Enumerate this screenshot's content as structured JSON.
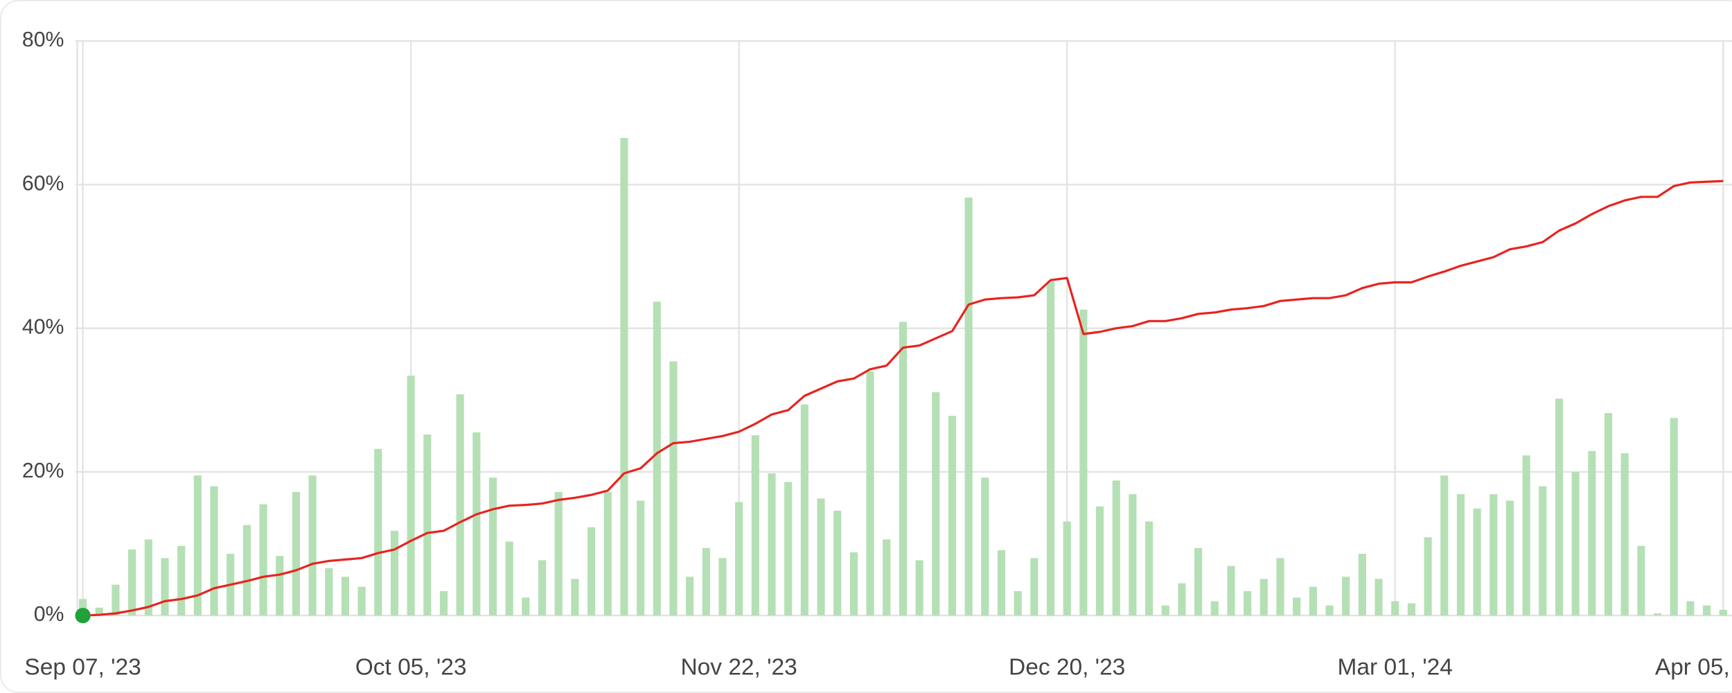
{
  "chart_data": {
    "type": "combo",
    "categories": [
      "Sep 07, '23",
      null,
      null,
      null,
      null,
      null,
      null,
      null,
      null,
      null,
      null,
      null,
      null,
      null,
      null,
      null,
      null,
      null,
      null,
      null,
      "Oct 05, '23",
      null,
      null,
      null,
      null,
      null,
      null,
      null,
      null,
      null,
      null,
      null,
      null,
      null,
      null,
      null,
      null,
      null,
      null,
      null,
      "Nov 22, '23",
      null,
      null,
      null,
      null,
      null,
      null,
      null,
      null,
      null,
      null,
      null,
      null,
      null,
      null,
      null,
      null,
      null,
      null,
      null,
      "Dec 20, '23",
      null,
      null,
      null,
      null,
      null,
      null,
      null,
      null,
      null,
      null,
      null,
      null,
      null,
      null,
      null,
      null,
      null,
      null,
      null,
      "Mar 01, '24",
      null,
      null,
      null,
      null,
      null,
      null,
      null,
      null,
      null,
      null,
      null,
      null,
      null,
      null,
      null,
      null,
      null,
      null,
      null,
      "Apr 05,"
    ],
    "series": [
      {
        "type": "bar",
        "color": "#b5e0b5",
        "values": [
          2.3,
          1.1,
          4.3,
          9.2,
          10.6,
          8,
          9.7,
          19.5,
          18,
          8.6,
          12.6,
          15.5,
          8.3,
          17.2,
          19.5,
          6.6,
          5.4,
          4,
          23.2,
          11.8,
          33.4,
          25.2,
          3.4,
          30.8,
          25.5,
          19.2,
          10.3,
          2.5,
          7.7,
          17.2,
          5.1,
          12.3,
          17.2,
          66.5,
          16,
          43.7,
          35.4,
          5.4,
          9.4,
          8,
          15.8,
          25.1,
          19.8,
          18.6,
          29.4,
          16.3,
          14.6,
          8.8,
          34,
          10.6,
          40.9,
          7.7,
          31.1,
          27.8,
          58.2,
          19.2,
          9.1,
          3.4,
          8,
          46.5,
          13.1,
          42.6,
          15.2,
          18.8,
          16.9,
          13.1,
          1.4,
          4.5,
          9.4,
          2,
          6.9,
          3.4,
          5.1,
          8,
          2.5,
          4,
          1.4,
          5.4,
          8.6,
          5.1,
          2,
          1.7,
          10.9,
          19.5,
          16.9,
          14.9,
          16.9,
          16,
          22.3,
          18,
          30.2,
          20,
          22.9,
          28.2,
          22.6,
          9.7,
          0.3,
          27.5,
          2,
          1.4,
          0.8
        ]
      },
      {
        "type": "line",
        "color": "#e8231f",
        "marker_color": "#1fa339",
        "values": [
          0,
          0.1,
          0.3,
          0.7,
          1.2,
          2,
          2.3,
          2.8,
          3.8,
          4.3,
          4.8,
          5.4,
          5.7,
          6.3,
          7.2,
          7.6,
          7.8,
          8,
          8.7,
          9.2,
          10.4,
          11.5,
          11.8,
          13,
          14.1,
          14.8,
          15.3,
          15.4,
          15.6,
          16.1,
          16.4,
          16.8,
          17.4,
          19.8,
          20.5,
          22.6,
          24,
          24.2,
          24.6,
          25,
          25.6,
          26.7,
          28,
          28.6,
          30.6,
          31.6,
          32.6,
          33,
          34.3,
          34.8,
          37.3,
          37.6,
          38.6,
          39.6,
          43.3,
          44,
          44.2,
          44.3,
          44.6,
          46.7,
          47,
          39.2,
          39.5,
          40,
          40.3,
          41,
          41,
          41.4,
          42,
          42.2,
          42.6,
          42.8,
          43.1,
          43.8,
          44,
          44.2,
          44.2,
          44.6,
          45.6,
          46.2,
          46.4,
          46.4,
          47.2,
          47.9,
          48.7,
          49.3,
          49.9,
          51,
          51.4,
          52,
          53.6,
          54.6,
          55.9,
          57,
          57.8,
          58.3,
          58.3,
          59.8,
          60.3,
          60.4,
          60.5
        ]
      }
    ],
    "ylim": [
      0,
      80
    ],
    "yticks": [
      {
        "value": 0,
        "label": "0%"
      },
      {
        "value": 20,
        "label": "20%"
      },
      {
        "value": 40,
        "label": "40%"
      },
      {
        "value": 60,
        "label": "60%"
      },
      {
        "value": 80,
        "label": "80%"
      }
    ],
    "grid": true
  }
}
